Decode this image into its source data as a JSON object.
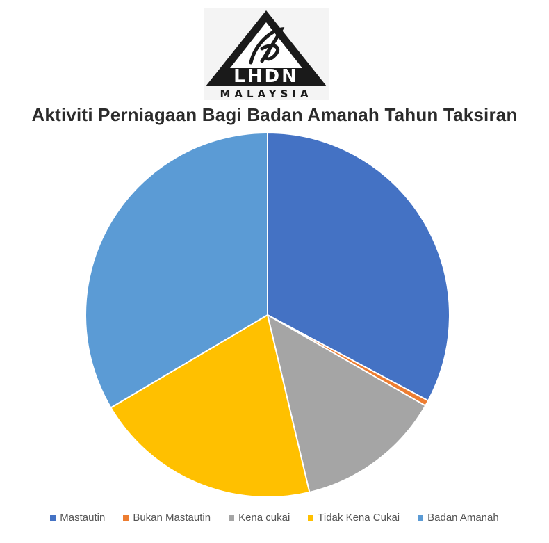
{
  "logo": {
    "text": "LHDN",
    "subtext": "MALAYSIA"
  },
  "chart_data": {
    "type": "pie",
    "title": "Aktiviti Perniagaan Bagi Badan Amanah Tahun Taksiran",
    "start_angle_deg": 0,
    "direction": "clockwise",
    "legend_position": "bottom",
    "slices": [
      {
        "name": "Mastautin",
        "value": 32.8,
        "color": "#4472C4"
      },
      {
        "name": "Bukan Mastautin",
        "value": 0.5,
        "color": "#ED7D31"
      },
      {
        "name": "Kena cukai",
        "value": 13.0,
        "color": "#A5A5A5"
      },
      {
        "name": "Tidak Kena Cukai",
        "value": 20.2,
        "color": "#FFC000"
      },
      {
        "name": "Badan Amanah",
        "value": 33.5,
        "color": "#5B9BD5"
      }
    ]
  }
}
